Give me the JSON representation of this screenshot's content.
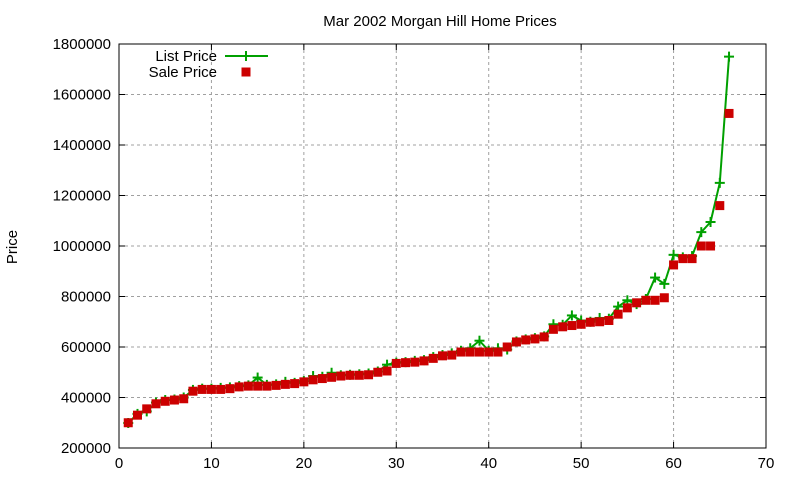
{
  "chart_data": {
    "type": "line",
    "title": "Mar 2002 Morgan Hill Home Prices",
    "xlabel": "",
    "ylabel": "Price",
    "xlim": [
      0,
      70
    ],
    "ylim": [
      200000,
      1800000
    ],
    "xticks": [
      0,
      10,
      20,
      30,
      40,
      50,
      60,
      70
    ],
    "yticks": [
      200000,
      400000,
      600000,
      800000,
      1000000,
      1200000,
      1400000,
      1600000,
      1800000
    ],
    "grid": true,
    "legend_position": "top-left",
    "x": [
      1,
      2,
      3,
      4,
      5,
      6,
      7,
      8,
      9,
      10,
      11,
      12,
      13,
      14,
      15,
      16,
      17,
      18,
      19,
      20,
      21,
      22,
      23,
      24,
      25,
      26,
      27,
      28,
      29,
      30,
      31,
      32,
      33,
      34,
      35,
      36,
      37,
      38,
      39,
      40,
      41,
      42,
      43,
      44,
      45,
      46,
      47,
      48,
      49,
      50,
      51,
      52,
      53,
      54,
      55,
      56,
      57,
      58,
      59,
      60,
      61,
      62,
      63,
      64,
      65,
      66
    ],
    "series": [
      {
        "name": "List Price",
        "style": "linespoints",
        "color": "#00a000",
        "values": [
          299000,
          335000,
          345000,
          380000,
          390000,
          392000,
          400000,
          430000,
          435000,
          435000,
          438000,
          440000,
          445000,
          448000,
          479000,
          450000,
          452000,
          462000,
          458000,
          465000,
          485000,
          482000,
          498000,
          488000,
          490000,
          492000,
          495000,
          503000,
          530000,
          538000,
          540000,
          545000,
          548000,
          560000,
          568000,
          575000,
          585000,
          595000,
          625000,
          585000,
          595000,
          590000,
          622000,
          630000,
          635000,
          642000,
          690000,
          688000,
          725000,
          705000,
          700000,
          715000,
          712000,
          760000,
          785000,
          770000,
          790000,
          875000,
          850000,
          965000,
          955000,
          960000,
          1055000,
          1095000,
          1250000,
          1750000
        ]
      },
      {
        "name": "Sale Price",
        "style": "points",
        "color": "#cc0000",
        "values": [
          300000,
          330000,
          355000,
          375000,
          385000,
          390000,
          395000,
          425000,
          432000,
          432000,
          432000,
          435000,
          442000,
          445000,
          445000,
          445000,
          448000,
          452000,
          455000,
          462000,
          470000,
          475000,
          480000,
          485000,
          488000,
          488000,
          490000,
          500000,
          505000,
          535000,
          538000,
          540000,
          545000,
          555000,
          565000,
          568000,
          580000,
          580000,
          580000,
          580000,
          580000,
          600000,
          620000,
          628000,
          632000,
          640000,
          670000,
          680000,
          685000,
          690000,
          698000,
          700000,
          705000,
          730000,
          755000,
          775000,
          785000,
          785000,
          795000,
          925000,
          950000,
          950000,
          1000000,
          1000000,
          1160000,
          1525000
        ]
      }
    ]
  }
}
